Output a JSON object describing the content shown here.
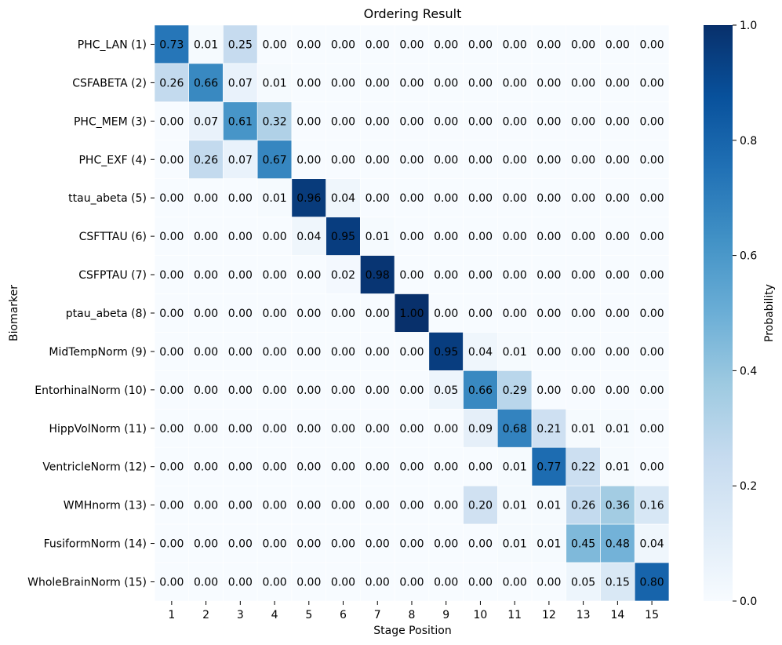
{
  "chart_data": {
    "type": "heatmap",
    "title": "Ordering Result",
    "xlabel": "Stage Position",
    "ylabel": "Biomarker",
    "x_ticks": [
      "1",
      "2",
      "3",
      "4",
      "5",
      "6",
      "7",
      "8",
      "9",
      "10",
      "11",
      "12",
      "13",
      "14",
      "15"
    ],
    "y_ticks": [
      "PHC_LAN (1)",
      "CSFABETA (2)",
      "PHC_MEM (3)",
      "PHC_EXF (4)",
      "ttau_abeta (5)",
      "CSFTTAU (6)",
      "CSFPTAU (7)",
      "ptau_abeta (8)",
      "MidTempNorm (9)",
      "EntorhinalNorm (10)",
      "HippVolNorm (11)",
      "VentricleNorm (12)",
      "WMHnorm (13)",
      "FusiformNorm (14)",
      "WholeBrainNorm (15)"
    ],
    "values": [
      [
        0.73,
        0.01,
        0.25,
        0.0,
        0.0,
        0.0,
        0.0,
        0.0,
        0.0,
        0.0,
        0.0,
        0.0,
        0.0,
        0.0,
        0.0
      ],
      [
        0.26,
        0.66,
        0.07,
        0.01,
        0.0,
        0.0,
        0.0,
        0.0,
        0.0,
        0.0,
        0.0,
        0.0,
        0.0,
        0.0,
        0.0
      ],
      [
        0.0,
        0.07,
        0.61,
        0.32,
        0.0,
        0.0,
        0.0,
        0.0,
        0.0,
        0.0,
        0.0,
        0.0,
        0.0,
        0.0,
        0.0
      ],
      [
        0.0,
        0.26,
        0.07,
        0.67,
        0.0,
        0.0,
        0.0,
        0.0,
        0.0,
        0.0,
        0.0,
        0.0,
        0.0,
        0.0,
        0.0
      ],
      [
        0.0,
        0.0,
        0.0,
        0.01,
        0.96,
        0.04,
        0.0,
        0.0,
        0.0,
        0.0,
        0.0,
        0.0,
        0.0,
        0.0,
        0.0
      ],
      [
        0.0,
        0.0,
        0.0,
        0.0,
        0.04,
        0.95,
        0.01,
        0.0,
        0.0,
        0.0,
        0.0,
        0.0,
        0.0,
        0.0,
        0.0
      ],
      [
        0.0,
        0.0,
        0.0,
        0.0,
        0.0,
        0.02,
        0.98,
        0.0,
        0.0,
        0.0,
        0.0,
        0.0,
        0.0,
        0.0,
        0.0
      ],
      [
        0.0,
        0.0,
        0.0,
        0.0,
        0.0,
        0.0,
        0.0,
        1.0,
        0.0,
        0.0,
        0.0,
        0.0,
        0.0,
        0.0,
        0.0
      ],
      [
        0.0,
        0.0,
        0.0,
        0.0,
        0.0,
        0.0,
        0.0,
        0.0,
        0.95,
        0.04,
        0.01,
        0.0,
        0.0,
        0.0,
        0.0
      ],
      [
        0.0,
        0.0,
        0.0,
        0.0,
        0.0,
        0.0,
        0.0,
        0.0,
        0.05,
        0.66,
        0.29,
        0.0,
        0.0,
        0.0,
        0.0
      ],
      [
        0.0,
        0.0,
        0.0,
        0.0,
        0.0,
        0.0,
        0.0,
        0.0,
        0.0,
        0.09,
        0.68,
        0.21,
        0.01,
        0.01,
        0.0
      ],
      [
        0.0,
        0.0,
        0.0,
        0.0,
        0.0,
        0.0,
        0.0,
        0.0,
        0.0,
        0.0,
        0.01,
        0.77,
        0.22,
        0.01,
        0.0
      ],
      [
        0.0,
        0.0,
        0.0,
        0.0,
        0.0,
        0.0,
        0.0,
        0.0,
        0.0,
        0.2,
        0.01,
        0.01,
        0.26,
        0.36,
        0.16
      ],
      [
        0.0,
        0.0,
        0.0,
        0.0,
        0.0,
        0.0,
        0.0,
        0.0,
        0.0,
        0.0,
        0.01,
        0.01,
        0.45,
        0.48,
        0.04
      ],
      [
        0.0,
        0.0,
        0.0,
        0.0,
        0.0,
        0.0,
        0.0,
        0.0,
        0.0,
        0.0,
        0.0,
        0.0,
        0.05,
        0.15,
        0.8
      ]
    ],
    "colorbar": {
      "label": "Probability",
      "range": [
        0.0,
        1.0
      ],
      "ticks": [
        "0.0",
        "0.2",
        "0.4",
        "0.6",
        "0.8",
        "1.0"
      ],
      "colors": [
        "#f7fbff",
        "#deebf7",
        "#c6dbef",
        "#9ecae1",
        "#6baed6",
        "#4292c6",
        "#2171b5",
        "#08519c",
        "#08306b"
      ]
    }
  }
}
